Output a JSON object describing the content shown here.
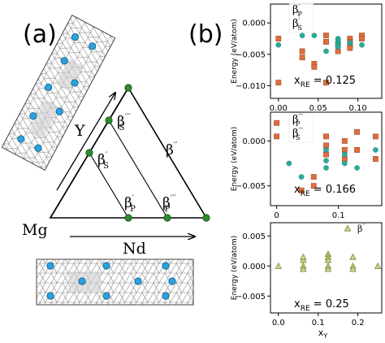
{
  "panel_a": {
    "label": "(a)",
    "vertices": {
      "left": "Mg"
    },
    "axis_y": "Y",
    "axis_x": "Nd",
    "phases": {
      "bsp": {
        "b": "β",
        "sup": "′",
        "sub": "S"
      },
      "bs3": {
        "b": "β",
        "sup": "′′′",
        "sub": "S"
      },
      "bdp": {
        "b": "β",
        "sup": "′′"
      },
      "bp1": {
        "b": "β",
        "sup": "′",
        "sub": "P"
      },
      "bp3": {
        "b": "β",
        "sup": "′′′",
        "sub": "P"
      }
    }
  },
  "panel_b": {
    "label": "(b)",
    "ylabel": "Energy (eV/atom)",
    "xlabel_main": "x",
    "xlabel_sub": "Y",
    "colors": {
      "orange": "#e06c3c",
      "teal": "#27ad9a",
      "tri": "#c8d88a"
    }
  },
  "chart_data": [
    {
      "type": "scatter",
      "annotation_main": "x",
      "annotation_sub": "RE",
      "annotation_value": " = 0.125",
      "xlim": [
        -0.01,
        0.13
      ],
      "ylim": [
        -0.012,
        0.003
      ],
      "xticks": [
        0.0,
        0.05,
        0.1
      ],
      "xtick_labels": [
        "0.00",
        "0.05",
        "0.10"
      ],
      "yticks": [
        0.0,
        -0.005,
        -0.01
      ],
      "ytick_labels": [
        "0.000",
        "−0.005",
        "−0.010"
      ],
      "legend": [
        {
          "b": "β",
          "sup": "′",
          "sub": "P",
          "color": "orange",
          "marker": "square"
        },
        {
          "b": "β",
          "sup": "′",
          "sub": "S",
          "color": "teal",
          "marker": "circle"
        }
      ],
      "series": [
        {
          "color": "orange",
          "marker": "square",
          "points": [
            [
              0.0,
              -0.0025
            ],
            [
              0.0,
              -0.0095
            ],
            [
              0.03,
              -0.0045
            ],
            [
              0.03,
              -0.0055
            ],
            [
              0.045,
              -0.0065
            ],
            [
              0.045,
              -0.007
            ],
            [
              0.06,
              -0.002
            ],
            [
              0.06,
              -0.003
            ],
            [
              0.06,
              -0.0095
            ],
            [
              0.075,
              -0.0035
            ],
            [
              0.075,
              -0.0045
            ],
            [
              0.09,
              -0.0025
            ],
            [
              0.09,
              -0.003
            ],
            [
              0.09,
              -0.0035
            ],
            [
              0.09,
              -0.004
            ],
            [
              0.105,
              -0.002
            ],
            [
              0.105,
              -0.0025
            ]
          ]
        },
        {
          "color": "teal",
          "marker": "circle",
          "points": [
            [
              0.0,
              -0.0035
            ],
            [
              0.03,
              -0.002
            ],
            [
              0.045,
              -0.002
            ],
            [
              0.06,
              -0.0045
            ],
            [
              0.075,
              -0.0025
            ],
            [
              0.075,
              -0.0028
            ],
            [
              0.075,
              -0.0031
            ],
            [
              0.075,
              -0.0034
            ],
            [
              0.075,
              -0.0038
            ],
            [
              0.09,
              -0.0032
            ],
            [
              0.105,
              -0.0035
            ]
          ]
        }
      ]
    },
    {
      "type": "scatter",
      "annotation_main": "x",
      "annotation_sub": "RE",
      "annotation_value": " = 0.166",
      "xlim": [
        -0.01,
        0.17
      ],
      "ylim": [
        -0.0072,
        0.0032
      ],
      "xticks": [
        0.0,
        0.1
      ],
      "xtick_labels": [
        "0",
        "0.1"
      ],
      "yticks": [
        0.0,
        -0.005
      ],
      "ytick_labels": [
        "0.000",
        "−0.005"
      ],
      "legend": [
        {
          "b": "β",
          "sup": "′′′",
          "sub": "P",
          "color": "orange",
          "marker": "square"
        },
        {
          "b": "β",
          "sup": "′′′",
          "sub": "S",
          "color": "teal",
          "marker": "circle"
        }
      ],
      "series": [
        {
          "color": "orange",
          "marker": "square",
          "points": [
            [
              0.0,
              0.002
            ],
            [
              0.0,
              0.0005
            ],
            [
              0.04,
              -0.0055
            ],
            [
              0.06,
              -0.004
            ],
            [
              0.06,
              -0.005
            ],
            [
              0.08,
              0.0005
            ],
            [
              0.08,
              -0.0005
            ],
            [
              0.08,
              -0.0015
            ],
            [
              0.11,
              0.0
            ],
            [
              0.11,
              -0.001
            ],
            [
              0.11,
              -0.002
            ],
            [
              0.13,
              0.001
            ],
            [
              0.13,
              -0.001
            ],
            [
              0.16,
              0.0005
            ],
            [
              0.16,
              -0.002
            ]
          ]
        },
        {
          "color": "teal",
          "marker": "circle",
          "points": [
            [
              0.02,
              -0.0025
            ],
            [
              0.04,
              -0.004
            ],
            [
              0.08,
              -0.001
            ],
            [
              0.08,
              -0.0022
            ],
            [
              0.08,
              -0.003
            ],
            [
              0.11,
              -0.0015
            ],
            [
              0.11,
              -0.0025
            ],
            [
              0.13,
              -0.003
            ],
            [
              0.16,
              -0.001
            ]
          ]
        }
      ]
    },
    {
      "type": "scatter",
      "annotation_main": "x",
      "annotation_sub": "RE",
      "annotation_value": " = 0.25",
      "xlim": [
        -0.02,
        0.26
      ],
      "ylim": [
        -0.0078,
        0.0072
      ],
      "xticks": [
        0.0,
        0.1,
        0.2
      ],
      "xtick_labels": [
        "0.0",
        "0.1",
        "0.2"
      ],
      "yticks": [
        0.005,
        0.0,
        -0.005
      ],
      "ytick_labels": [
        "0.005",
        "0.000",
        "−0.005"
      ],
      "legend": [
        {
          "b": "β",
          "sup": "′′",
          "color": "tri",
          "marker": "triangle"
        }
      ],
      "series": [
        {
          "color": "tri",
          "marker": "triangle",
          "points": [
            [
              0.0,
              0.0
            ],
            [
              0.0625,
              0.001
            ],
            [
              0.0625,
              0.0015
            ],
            [
              0.0625,
              0.0
            ],
            [
              0.0625,
              -0.0005
            ],
            [
              0.125,
              0.002
            ],
            [
              0.125,
              0.0015
            ],
            [
              0.125,
              0.001
            ],
            [
              0.125,
              0.0
            ],
            [
              0.125,
              -0.0005
            ],
            [
              0.1875,
              0.0015
            ],
            [
              0.1875,
              0.0
            ],
            [
              0.1875,
              -0.0005
            ],
            [
              0.25,
              0.0
            ]
          ]
        }
      ]
    }
  ]
}
